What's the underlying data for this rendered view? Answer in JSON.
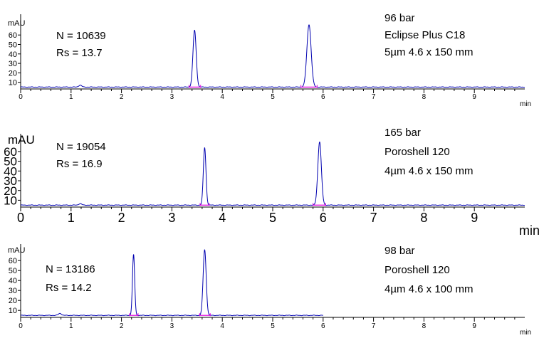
{
  "chart_data": [
    {
      "type": "line",
      "ylabel": "mAU",
      "xunit": "min",
      "xlim": [
        0,
        10
      ],
      "ylim": [
        3,
        70
      ],
      "xticks": [
        "0",
        "1",
        "2",
        "3",
        "4",
        "5",
        "6",
        "7",
        "8",
        "9"
      ],
      "yticks": [
        "10",
        "20",
        "30",
        "40",
        "50",
        "60"
      ],
      "stats": [
        "N = 10639",
        "Rs = 13.7"
      ],
      "info": [
        "96 bar",
        "Eclipse Plus C18",
        "5µm 4.6 x 150 mm"
      ],
      "baseline": 5,
      "run_end": 10,
      "peaks": [
        {
          "rt": 3.45,
          "height": 60,
          "width": 0.032
        },
        {
          "rt": 5.72,
          "height": 66,
          "width": 0.042
        },
        {
          "rt": 1.18,
          "height": 2,
          "width": 0.03
        }
      ],
      "integration": [
        [
          3.34,
          3.57
        ],
        [
          5.56,
          5.88
        ]
      ]
    },
    {
      "type": "line",
      "ylabel": "mAU",
      "xunit": "min",
      "xlim": [
        0,
        10
      ],
      "ylim": [
        3,
        70
      ],
      "xticks": [
        "0",
        "1",
        "2",
        "3",
        "4",
        "5",
        "6",
        "7",
        "8",
        "9"
      ],
      "yticks": [
        "10",
        "20",
        "30",
        "40",
        "50",
        "60"
      ],
      "stats": [
        "N = 19054",
        "Rs = 16.9"
      ],
      "info": [
        "165 bar",
        "Poroshell 120",
        "4µm 4.6 x 150 mm"
      ],
      "baseline": 5,
      "run_end": 10,
      "peaks": [
        {
          "rt": 3.65,
          "height": 59,
          "width": 0.026
        },
        {
          "rt": 5.93,
          "height": 65,
          "width": 0.035
        },
        {
          "rt": 1.18,
          "height": 1.5,
          "width": 0.03
        }
      ],
      "integration": [
        [
          3.56,
          3.74
        ],
        [
          5.8,
          6.05
        ]
      ]
    },
    {
      "type": "line",
      "ylabel": "mAU",
      "xunit": "min",
      "xlim": [
        0,
        10
      ],
      "ylim": [
        3,
        70
      ],
      "xticks": [
        "0",
        "1",
        "2",
        "3",
        "4",
        "5",
        "6",
        "7",
        "8",
        "9"
      ],
      "yticks": [
        "10",
        "20",
        "30",
        "40",
        "50",
        "60"
      ],
      "stats": [
        "N = 13186",
        "Rs = 14.2"
      ],
      "info": [
        "98 bar",
        "Poroshell 120",
        "4µm 4.6 x 100 mm"
      ],
      "baseline": 5,
      "run_end": 6,
      "peaks": [
        {
          "rt": 2.24,
          "height": 61,
          "width": 0.022
        },
        {
          "rt": 3.65,
          "height": 66,
          "width": 0.03
        },
        {
          "rt": 0.78,
          "height": 2,
          "width": 0.03
        }
      ],
      "integration": [
        [
          2.16,
          2.33
        ],
        [
          3.55,
          3.76
        ]
      ]
    }
  ],
  "colors": {
    "trace": "#0000b0",
    "integration": "#e000e0",
    "axis": "#000000"
  }
}
